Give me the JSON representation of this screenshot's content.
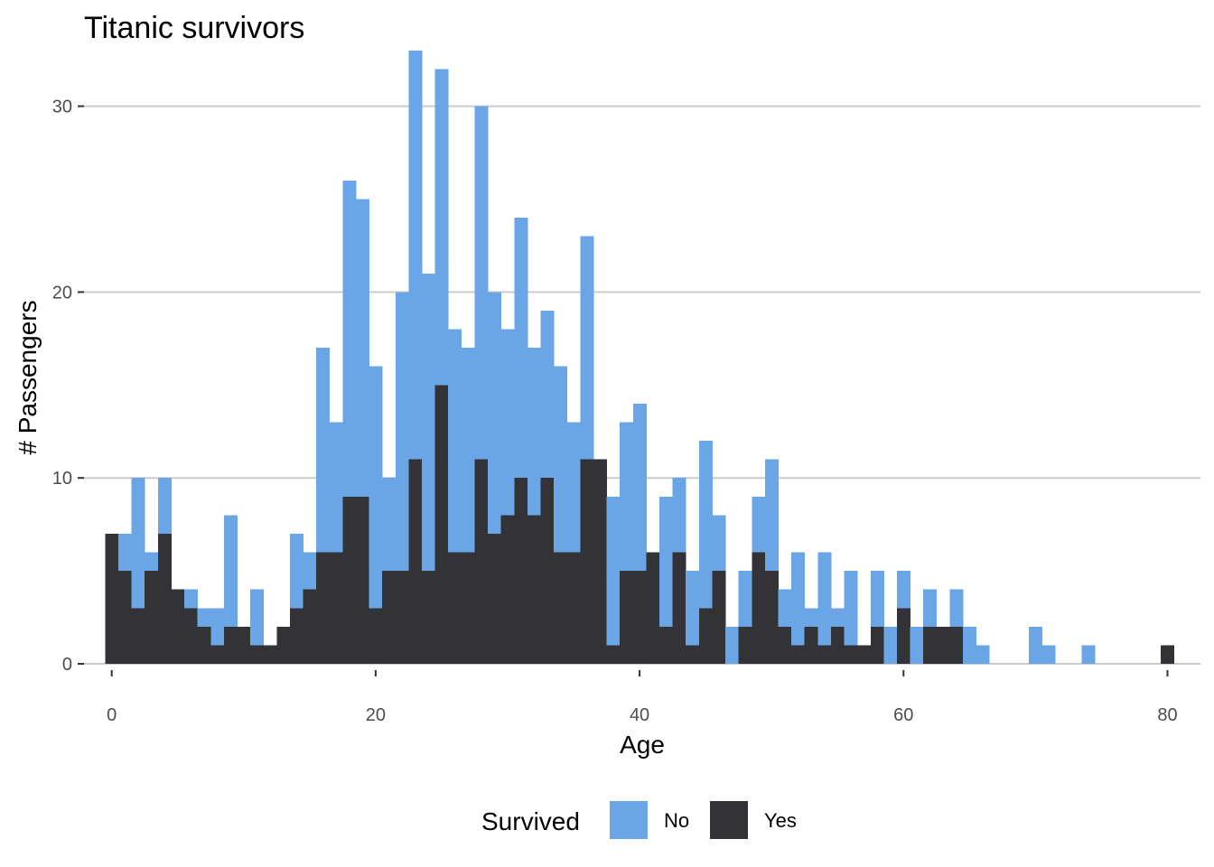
{
  "chart_data": {
    "type": "bar",
    "stacked": true,
    "title": "Titanic survivors",
    "xlabel": "Age",
    "ylabel": "# Passengers",
    "xlim": [
      -2.1,
      82.5
    ],
    "ylim": [
      0,
      31
    ],
    "xticks": [
      0,
      20,
      40,
      60,
      80
    ],
    "yticks": [
      0,
      10,
      20,
      30
    ],
    "bin_width": 1,
    "grid": "horizontal",
    "legend_position": "bottom",
    "legend_title": "Survived",
    "x": [
      0,
      1,
      2,
      3,
      4,
      5,
      6,
      7,
      8,
      9,
      10,
      11,
      12,
      13,
      14,
      15,
      16,
      17,
      18,
      19,
      20,
      21,
      22,
      23,
      24,
      25,
      26,
      27,
      28,
      29,
      30,
      31,
      32,
      33,
      34,
      35,
      36,
      37,
      38,
      39,
      40,
      41,
      42,
      43,
      44,
      45,
      46,
      47,
      48,
      49,
      50,
      51,
      52,
      53,
      54,
      55,
      56,
      57,
      58,
      59,
      60,
      61,
      62,
      63,
      64,
      65,
      66,
      67,
      68,
      69,
      70,
      71,
      72,
      73,
      74,
      75,
      76,
      77,
      78,
      79,
      80
    ],
    "series": [
      {
        "name": "No",
        "color": "#6aa6e6",
        "values": [
          0,
          2,
          7,
          1,
          3,
          0,
          1,
          1,
          2,
          6,
          0,
          3,
          0,
          0,
          4,
          2,
          11,
          7,
          17,
          16,
          13,
          5,
          15,
          22,
          16,
          17,
          12,
          11,
          19,
          13,
          10,
          14,
          9,
          9,
          10,
          7,
          12,
          0,
          8,
          8,
          9,
          0,
          7,
          4,
          4,
          9,
          3,
          2,
          3,
          3,
          6,
          2,
          5,
          1,
          5,
          1,
          4,
          0,
          3,
          2,
          2,
          2,
          2,
          0,
          2,
          2,
          1,
          0,
          0,
          0,
          2,
          1,
          0,
          0,
          1,
          0,
          0,
          0,
          0,
          0,
          0
        ]
      },
      {
        "name": "Yes",
        "color": "#333337",
        "values": [
          7,
          5,
          3,
          5,
          7,
          4,
          3,
          2,
          1,
          2,
          2,
          1,
          1,
          2,
          3,
          4,
          6,
          6,
          9,
          9,
          3,
          5,
          5,
          11,
          5,
          15,
          6,
          6,
          11,
          7,
          8,
          10,
          8,
          10,
          6,
          6,
          11,
          11,
          1,
          5,
          5,
          6,
          2,
          6,
          1,
          3,
          5,
          0,
          2,
          6,
          5,
          2,
          1,
          2,
          1,
          2,
          1,
          1,
          2,
          0,
          3,
          0,
          2,
          2,
          2,
          0,
          0,
          0,
          0,
          0,
          0,
          0,
          0,
          0,
          0,
          0,
          0,
          0,
          0,
          0,
          1
        ]
      }
    ]
  }
}
